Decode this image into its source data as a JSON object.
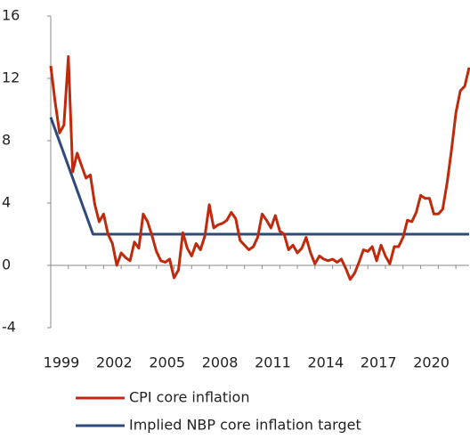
{
  "chart_data": {
    "type": "line",
    "xlim": [
      1999,
      2022.75
    ],
    "ylim": [
      -4,
      16
    ],
    "xticks": [
      1999,
      2002,
      2005,
      2008,
      2011,
      2014,
      2017,
      2020
    ],
    "x_minor_ticks": [
      1999,
      2000,
      2001,
      2002,
      2003,
      2004,
      2005,
      2006,
      2007,
      2008,
      2009,
      2010,
      2011,
      2012,
      2013,
      2014,
      2015,
      2016,
      2017,
      2018,
      2019,
      2020,
      2021,
      2022
    ],
    "yticks": [
      -4,
      0,
      4,
      8,
      12,
      16
    ],
    "series": [
      {
        "name": "CPI core inflation",
        "color": "#c02a0c",
        "x": [
          1999,
          1999.25,
          1999.5,
          1999.75,
          2000,
          2000.25,
          2000.5,
          2000.75,
          2001,
          2001.25,
          2001.5,
          2001.75,
          2002,
          2002.25,
          2002.5,
          2002.75,
          2003,
          2003.25,
          2003.5,
          2003.75,
          2004,
          2004.25,
          2004.5,
          2004.75,
          2005,
          2005.25,
          2005.5,
          2005.75,
          2006,
          2006.25,
          2006.5,
          2006.75,
          2007,
          2007.25,
          2007.5,
          2007.75,
          2008,
          2008.25,
          2008.5,
          2008.75,
          2009,
          2009.25,
          2009.5,
          2009.75,
          2010,
          2010.25,
          2010.5,
          2010.75,
          2011,
          2011.25,
          2011.5,
          2011.75,
          2012,
          2012.25,
          2012.5,
          2012.75,
          2013,
          2013.25,
          2013.5,
          2013.75,
          2014,
          2014.25,
          2014.5,
          2014.75,
          2015,
          2015.25,
          2015.5,
          2015.75,
          2016,
          2016.25,
          2016.5,
          2016.75,
          2017,
          2017.25,
          2017.5,
          2017.75,
          2018,
          2018.25,
          2018.5,
          2018.75,
          2019,
          2019.25,
          2019.5,
          2019.75,
          2020,
          2020.25,
          2020.5,
          2020.75,
          2021,
          2021.25,
          2021.5,
          2021.75,
          2022,
          2022.25,
          2022.5,
          2022.75
        ],
        "values": [
          12.8,
          10.5,
          8.5,
          9.0,
          13.4,
          6.0,
          7.2,
          6.4,
          5.6,
          5.8,
          3.9,
          2.8,
          3.3,
          2.0,
          1.4,
          0.0,
          0.8,
          0.5,
          0.3,
          1.5,
          1.1,
          3.3,
          2.8,
          1.9,
          0.9,
          0.3,
          0.2,
          0.4,
          -0.8,
          -0.3,
          2.1,
          1.1,
          0.6,
          1.4,
          1.0,
          1.9,
          3.9,
          2.4,
          2.6,
          2.7,
          2.9,
          3.4,
          3.0,
          1.6,
          1.3,
          1.0,
          1.2,
          1.8,
          3.3,
          2.9,
          2.4,
          3.2,
          2.2,
          2.0,
          1.0,
          1.3,
          0.8,
          1.1,
          1.8,
          0.8,
          0.1,
          0.6,
          0.4,
          0.3,
          0.4,
          0.2,
          0.4,
          -0.2,
          -0.9,
          -0.5,
          0.2,
          1.0,
          0.9,
          1.2,
          0.3,
          1.3,
          0.6,
          0.1,
          1.2,
          1.2,
          1.8,
          2.9,
          2.8,
          3.4,
          4.5,
          4.3,
          4.3,
          3.3,
          3.3,
          3.6,
          5.3,
          7.4,
          9.8,
          11.2,
          11.5,
          12.7
        ]
      },
      {
        "name": "Implied NBP core inflation target",
        "color": "#2e4a7d",
        "x": [
          1999,
          2001.4,
          2022.75
        ],
        "values": [
          9.5,
          2.0,
          2.0
        ]
      }
    ]
  }
}
